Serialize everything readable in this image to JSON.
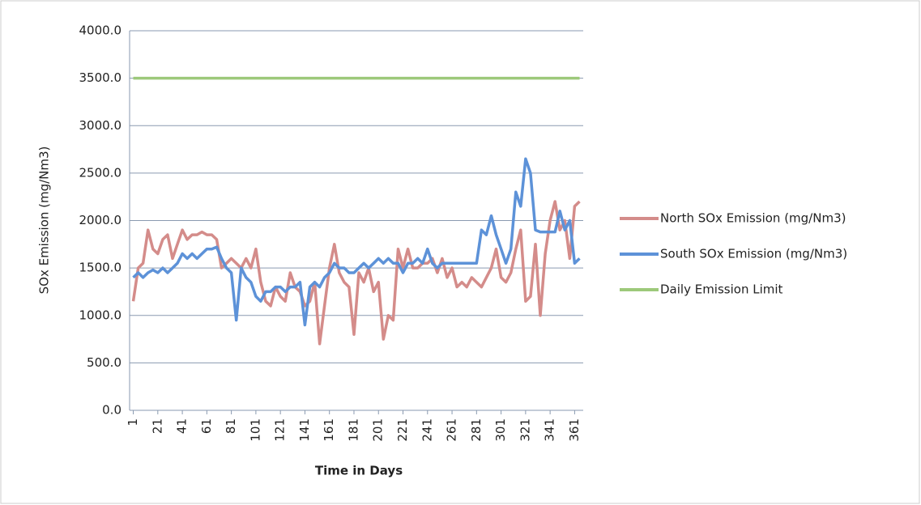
{
  "chart_data": {
    "type": "line",
    "x_label": "Time in Days",
    "y_label": "SOx Emission (mg/Nm3)",
    "x": [
      1,
      5,
      9,
      13,
      17,
      21,
      25,
      29,
      33,
      37,
      41,
      45,
      49,
      53,
      57,
      61,
      65,
      69,
      73,
      77,
      81,
      85,
      89,
      93,
      97,
      101,
      105,
      109,
      113,
      117,
      121,
      125,
      129,
      133,
      137,
      141,
      145,
      149,
      153,
      157,
      161,
      165,
      169,
      173,
      177,
      181,
      185,
      189,
      193,
      197,
      201,
      205,
      209,
      213,
      217,
      221,
      225,
      229,
      233,
      237,
      241,
      245,
      249,
      253,
      257,
      261,
      265,
      269,
      273,
      277,
      281,
      285,
      289,
      293,
      297,
      301,
      305,
      309,
      313,
      317,
      321,
      325,
      329,
      333,
      337,
      341,
      345,
      349,
      353,
      357,
      361,
      365
    ],
    "series": [
      {
        "name": "North SOx Emission (mg/Nm3)",
        "color": "#d48c8a",
        "values": [
          1150,
          1500,
          1550,
          1900,
          1700,
          1650,
          1800,
          1850,
          1600,
          1750,
          1900,
          1800,
          1850,
          1850,
          1880,
          1850,
          1850,
          1800,
          1500,
          1550,
          1600,
          1550,
          1500,
          1600,
          1500,
          1700,
          1350,
          1150,
          1100,
          1300,
          1200,
          1150,
          1450,
          1300,
          1250,
          1100,
          1150,
          1350,
          700,
          1100,
          1500,
          1750,
          1450,
          1350,
          1300,
          800,
          1450,
          1350,
          1500,
          1250,
          1350,
          750,
          1000,
          950,
          1700,
          1500,
          1700,
          1500,
          1500,
          1550,
          1550,
          1600,
          1450,
          1600,
          1400,
          1500,
          1300,
          1350,
          1300,
          1400,
          1350,
          1300,
          1400,
          1500,
          1700,
          1400,
          1350,
          1450,
          1700,
          1900,
          1150,
          1200,
          1750,
          1000,
          1650,
          2000,
          2200,
          1900,
          2000,
          1600,
          2150,
          2200
        ]
      },
      {
        "name": "South SOx Emission (mg/Nm3)",
        "color": "#5d92d8",
        "values": [
          1400,
          1450,
          1400,
          1450,
          1480,
          1450,
          1500,
          1450,
          1500,
          1550,
          1650,
          1600,
          1650,
          1600,
          1650,
          1700,
          1700,
          1720,
          1600,
          1500,
          1450,
          950,
          1500,
          1400,
          1350,
          1200,
          1150,
          1250,
          1250,
          1300,
          1300,
          1250,
          1300,
          1300,
          1350,
          900,
          1300,
          1350,
          1300,
          1400,
          1450,
          1550,
          1500,
          1500,
          1450,
          1450,
          1500,
          1550,
          1500,
          1550,
          1600,
          1550,
          1600,
          1550,
          1550,
          1450,
          1550,
          1550,
          1600,
          1550,
          1700,
          1550,
          1500,
          1550,
          1550,
          1550,
          1550,
          1550,
          1550,
          1550,
          1550,
          1900,
          1850,
          2050,
          1850,
          1700,
          1550,
          1700,
          2300,
          2150,
          2650,
          2500,
          1900,
          1880,
          1880,
          1880,
          1880,
          2100,
          1900,
          2000,
          1550,
          1600
        ]
      },
      {
        "name": "Daily Emission Limit",
        "color": "#9dc97a",
        "values": [
          3500,
          3500,
          3500,
          3500,
          3500,
          3500,
          3500,
          3500,
          3500,
          3500,
          3500,
          3500,
          3500,
          3500,
          3500,
          3500,
          3500,
          3500,
          3500,
          3500,
          3500,
          3500,
          3500,
          3500,
          3500,
          3500,
          3500,
          3500,
          3500,
          3500,
          3500,
          3500,
          3500,
          3500,
          3500,
          3500,
          3500,
          3500,
          3500,
          3500,
          3500,
          3500,
          3500,
          3500,
          3500,
          3500,
          3500,
          3500,
          3500,
          3500,
          3500,
          3500,
          3500,
          3500,
          3500,
          3500,
          3500,
          3500,
          3500,
          3500,
          3500,
          3500,
          3500,
          3500,
          3500,
          3500,
          3500,
          3500,
          3500,
          3500,
          3500,
          3500,
          3500,
          3500,
          3500,
          3500,
          3500,
          3500,
          3500,
          3500,
          3500,
          3500,
          3500,
          3500,
          3500,
          3500,
          3500,
          3500,
          3500,
          3500,
          3500,
          3500
        ]
      }
    ],
    "xlim": [
      -2,
      368
    ],
    "xticks": [
      1,
      21,
      41,
      61,
      81,
      101,
      121,
      141,
      161,
      181,
      201,
      221,
      241,
      261,
      281,
      301,
      321,
      341,
      361
    ],
    "ylim": [
      0,
      4000
    ],
    "yticks": [
      {
        "value": 0,
        "label": "0.0"
      },
      {
        "value": 500,
        "label": "500.0"
      },
      {
        "value": 1000,
        "label": "1000.0"
      },
      {
        "value": 1500,
        "label": "1500.0"
      },
      {
        "value": 2000,
        "label": "2000.0"
      },
      {
        "value": 2500,
        "label": "2500.0"
      },
      {
        "value": 3000,
        "label": "3000.0"
      },
      {
        "value": 3500,
        "label": "3500.0"
      },
      {
        "value": 4000,
        "label": "4000.0"
      }
    ],
    "grid": true,
    "legend": "right"
  }
}
